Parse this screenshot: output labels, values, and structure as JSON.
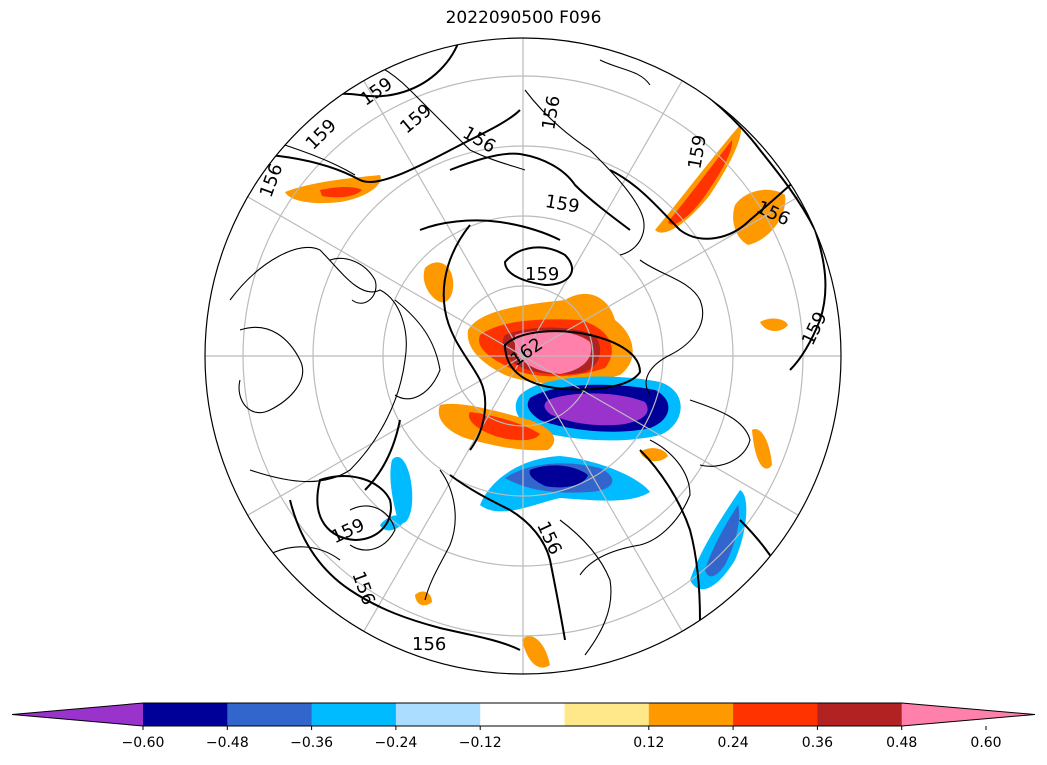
{
  "title": "2022090500 F096",
  "contour_labels": [
    "159",
    "159",
    "159",
    "156",
    "156",
    "156",
    "159",
    "159",
    "156",
    "159",
    "159",
    "162",
    "159",
    "156",
    "156",
    "156"
  ],
  "colorbar": {
    "colors": [
      "#9933cc",
      "#000099",
      "#3366cc",
      "#00bbff",
      "#aaddff",
      "#ffffff",
      "#ffe88a",
      "#ff9900",
      "#ff3300",
      "#b22222",
      "#ff80aa"
    ],
    "ticks": [
      "−0.60",
      "−0.48",
      "−0.36",
      "−0.24",
      "−0.12",
      "0.12",
      "0.24",
      "0.36",
      "0.48",
      "0.60"
    ]
  }
}
